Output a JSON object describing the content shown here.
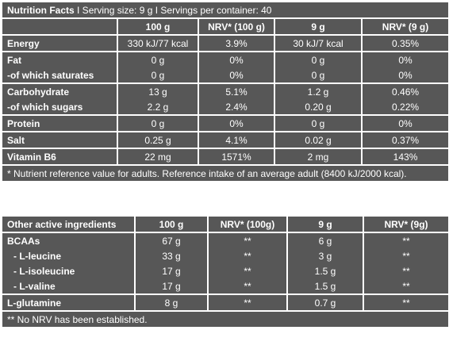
{
  "nutrition": {
    "title": "Nutrition Facts",
    "serving": "I Serving size: 9 g I Servings per container: 40",
    "headers": [
      "100 g",
      "NRV* (100 g)",
      "9 g",
      "NRV* (9 g)"
    ],
    "groups": [
      {
        "rows": [
          [
            "Energy",
            "330 kJ/77 kcal",
            "3.9%",
            "30 kJ/7 kcal",
            "0.35%"
          ]
        ]
      },
      {
        "rows": [
          [
            "Fat",
            "0 g",
            "0%",
            "0 g",
            "0%"
          ],
          [
            "-of which saturates",
            "0 g",
            "0%",
            "0 g",
            "0%"
          ]
        ]
      },
      {
        "rows": [
          [
            "Carbohydrate",
            "13 g",
            "5.1%",
            "1.2 g",
            "0.46%"
          ],
          [
            "-of which sugars",
            "2.2 g",
            "2.4%",
            "0.20 g",
            "0.22%"
          ]
        ]
      },
      {
        "rows": [
          [
            "Protein",
            "0 g",
            "0%",
            "0 g",
            "0%"
          ]
        ]
      },
      {
        "rows": [
          [
            "Salt",
            "0.25 g",
            "4.1%",
            "0.02 g",
            "0.37%"
          ]
        ]
      },
      {
        "rows": [
          [
            "Vitamin B6",
            "22 mg",
            "1571%",
            "2 mg",
            "143%"
          ]
        ]
      }
    ],
    "footnote": "* Nutrient reference value for adults. Reference intake of an average adult (8400 kJ/2000 kcal)."
  },
  "ingredients": {
    "headers": [
      "Other active ingredients",
      "100 g",
      "NRV* (100g)",
      "9 g",
      "NRV* (9g)"
    ],
    "groups": [
      {
        "rows": [
          [
            "BCAAs",
            "67 g",
            "**",
            "6 g",
            "**"
          ],
          [
            "- L-leucine",
            "33 g",
            "**",
            "3 g",
            "**"
          ],
          [
            "- L-isoleucine",
            "17 g",
            "**",
            "1.5 g",
            "**"
          ],
          [
            "- L-valine",
            "17 g",
            "**",
            "1.5 g",
            "**"
          ]
        ]
      },
      {
        "rows": [
          [
            "L-glutamine",
            "8 g",
            "**",
            "0.7 g",
            "**"
          ]
        ]
      }
    ],
    "footnote": "** No NRV has been established."
  }
}
